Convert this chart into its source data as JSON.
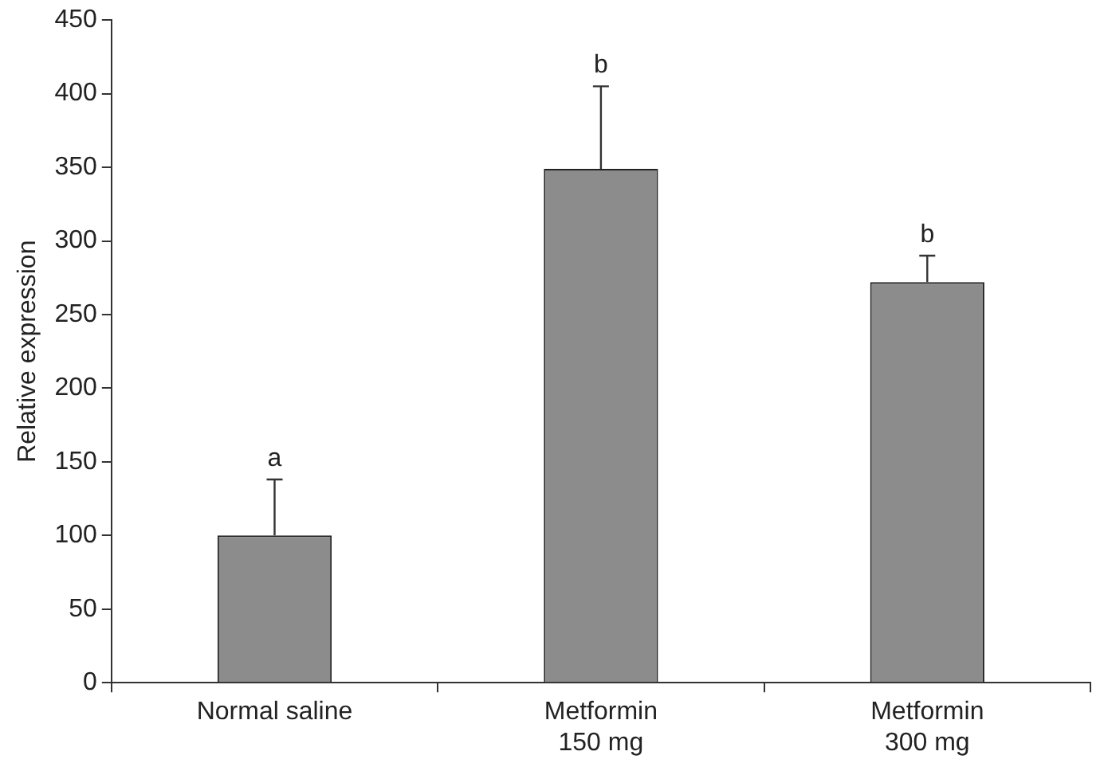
{
  "chart_data": {
    "type": "bar",
    "ylabel": "Relative expression",
    "categories": [
      "Normal saline",
      "Metformin\n150 mg",
      "Metformin\n300 mg"
    ],
    "values": [
      100,
      349,
      272
    ],
    "errors": [
      [
        100,
        138
      ],
      [
        349,
        405
      ],
      [
        272,
        290
      ]
    ],
    "color": "#8c8c8c",
    "ylim": [
      0,
      450
    ],
    "yticks": [
      0,
      50,
      100,
      150,
      200,
      250,
      300,
      350,
      400,
      450
    ],
    "annotations": [
      "a",
      "b",
      "b"
    ],
    "grid": false,
    "legend": false
  }
}
